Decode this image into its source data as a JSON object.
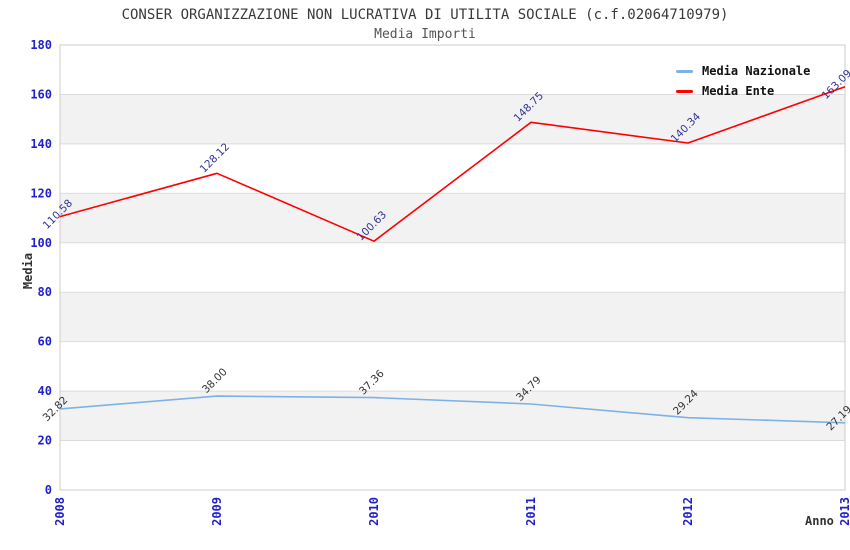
{
  "chart_data": {
    "type": "line",
    "title": "CONSER ORGANIZZAZIONE NON LUCRATIVA DI UTILITA SOCIALE (c.f.02064710979)",
    "subtitle": "Media Importi",
    "xlabel": "Anno",
    "ylabel": "Media",
    "categories": [
      "2008",
      "2009",
      "2010",
      "2011",
      "2012",
      "2013"
    ],
    "ylim": [
      0,
      180
    ],
    "yticks": [
      0,
      20,
      40,
      60,
      80,
      100,
      120,
      140,
      160,
      180
    ],
    "grid": true,
    "legend_position": "top-right",
    "colors": {
      "band_fill": "#f2f2f2",
      "gridline": "#dcdcdc",
      "plot_border": "#cccccc",
      "tick_label": "#2222cc",
      "axis_title": "#333333",
      "title_text": "#3a3a3a",
      "subtitle_text": "#555555"
    },
    "series": [
      {
        "name": "Media Nazionale",
        "color": "#7eb2e5",
        "label_color": "#333333",
        "values": [
          32.82,
          38.0,
          37.36,
          34.79,
          29.24,
          27.19
        ],
        "labels": [
          "32.82",
          "38.00",
          "37.36",
          "34.79",
          "29.24",
          "27.19"
        ]
      },
      {
        "name": "Media Ente",
        "color": "#ff0000",
        "label_color": "#333399",
        "values": [
          110.58,
          128.12,
          100.63,
          148.75,
          140.34,
          163.09
        ],
        "labels": [
          "110.58",
          "128.12",
          "100.63",
          "148.75",
          "140.34",
          "163.09"
        ]
      }
    ]
  }
}
